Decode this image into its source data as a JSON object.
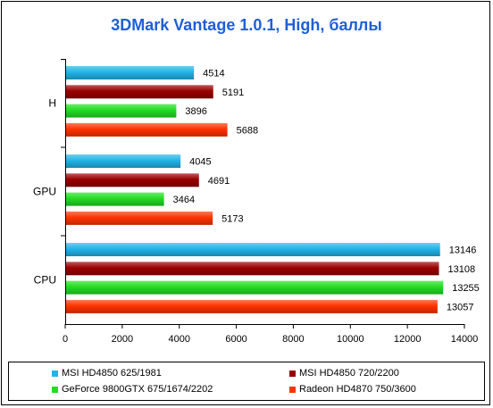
{
  "chart_data": {
    "type": "bar",
    "orientation": "horizontal",
    "title": "3DMark Vantage 1.0.1, High, баллы",
    "categories": [
      "H",
      "GPU",
      "CPU"
    ],
    "series": [
      {
        "name": "MSI HD4850 625/1981",
        "color": "#22b4e8",
        "values": [
          4514,
          4045,
          13146
        ]
      },
      {
        "name": "MSI HD4850 720/2200",
        "color": "#990000",
        "values": [
          5191,
          4691,
          13108
        ]
      },
      {
        "name": "GeForce 9800GTX 675/1674/2202",
        "color": "#22dd22",
        "values": [
          3896,
          3464,
          13255
        ]
      },
      {
        "name": "Radeon HD4870 750/3600",
        "color": "#ff3300",
        "values": [
          5688,
          5173,
          13057
        ]
      }
    ],
    "xlim": [
      0,
      14000
    ],
    "xticks": [
      "0",
      "2000",
      "4000",
      "6000",
      "8000",
      "10000",
      "12000",
      "14000"
    ],
    "grid": false,
    "legend_position": "bottom"
  }
}
